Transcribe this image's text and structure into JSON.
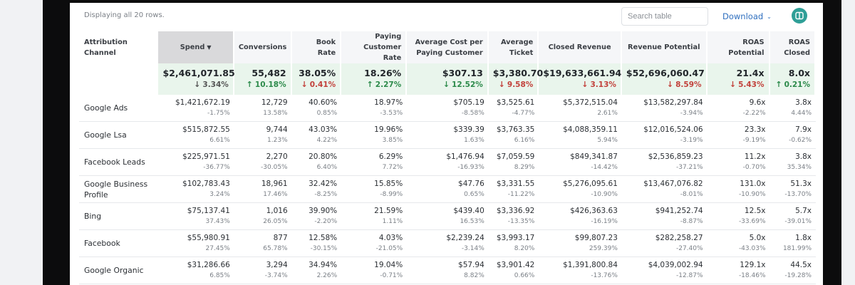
{
  "toolbar": {
    "rows_info": "Displaying all 20 rows.",
    "search_placeholder": "Search table",
    "download_label": "Download",
    "download_chevron": "⌄"
  },
  "colors": {
    "accent": "#2f9f97",
    "link": "#2f6fbf",
    "negative": "#c2413b",
    "positive": "#2c8a4a",
    "total_bg": "#e9f5ec"
  },
  "table": {
    "headers": {
      "channel": "Attribution Channel",
      "spend": "Spend",
      "spend_sort": "▼",
      "conversions": "Conversions",
      "book_rate": "Book Rate",
      "paying_customer_rate": "Paying Customer Rate",
      "avg_cost": "Average Cost per Paying Customer",
      "avg_ticket": "Average Ticket",
      "closed_revenue": "Closed Revenue",
      "revenue_potential": "Revenue Potential",
      "roas_potential": "ROAS Potential",
      "roas_closed": "ROAS Closed"
    },
    "totals": {
      "spend": {
        "value": "$2,461,071.85",
        "change": "3.34%",
        "dir": "down",
        "color": "neutral"
      },
      "conversions": {
        "value": "55,482",
        "change": "10.18%",
        "dir": "up",
        "color": "up"
      },
      "book_rate": {
        "value": "38.05%",
        "change": "0.41%",
        "dir": "down",
        "color": "down"
      },
      "paying_customer_rate": {
        "value": "18.26%",
        "change": "2.27%",
        "dir": "up",
        "color": "up"
      },
      "avg_cost": {
        "value": "$307.13",
        "change": "12.52%",
        "dir": "down",
        "color": "up"
      },
      "avg_ticket": {
        "value": "$3,380.70",
        "change": "9.58%",
        "dir": "down",
        "color": "down"
      },
      "closed_revenue": {
        "value": "$19,633,661.94",
        "change": "3.13%",
        "dir": "down",
        "color": "down"
      },
      "revenue_potential": {
        "value": "$52,696,060.47",
        "change": "8.59%",
        "dir": "down",
        "color": "down"
      },
      "roas_potential": {
        "value": "21.4x",
        "change": "5.43%",
        "dir": "down",
        "color": "down"
      },
      "roas_closed": {
        "value": "8.0x",
        "change": "0.21%",
        "dir": "up",
        "color": "up"
      }
    },
    "rows": [
      {
        "channel": "Google Ads",
        "spend": [
          "$1,421,672.19",
          "-1.75%"
        ],
        "conversions": [
          "12,729",
          "13.58%"
        ],
        "book_rate": [
          "40.60%",
          "0.85%"
        ],
        "paying_customer_rate": [
          "18.97%",
          "-3.53%"
        ],
        "avg_cost": [
          "$705.19",
          "-8.58%"
        ],
        "avg_ticket": [
          "$3,525.61",
          "-4.77%"
        ],
        "closed_revenue": [
          "$5,372,515.04",
          "2.61%"
        ],
        "revenue_potential": [
          "$13,582,297.84",
          "-3.94%"
        ],
        "roas_potential": [
          "9.6x",
          "-2.22%"
        ],
        "roas_closed": [
          "3.8x",
          "4.44%"
        ]
      },
      {
        "channel": "Google Lsa",
        "spend": [
          "$515,872.55",
          "6.61%"
        ],
        "conversions": [
          "9,744",
          "1.23%"
        ],
        "book_rate": [
          "43.03%",
          "4.22%"
        ],
        "paying_customer_rate": [
          "19.96%",
          "3.85%"
        ],
        "avg_cost": [
          "$339.39",
          "1.63%"
        ],
        "avg_ticket": [
          "$3,763.35",
          "6.16%"
        ],
        "closed_revenue": [
          "$4,088,359.11",
          "5.94%"
        ],
        "revenue_potential": [
          "$12,016,524.06",
          "-3.19%"
        ],
        "roas_potential": [
          "23.3x",
          "-9.19%"
        ],
        "roas_closed": [
          "7.9x",
          "-0.62%"
        ]
      },
      {
        "channel": "Facebook Leads",
        "spend": [
          "$225,971.51",
          "-36.77%"
        ],
        "conversions": [
          "2,270",
          "-30.05%"
        ],
        "book_rate": [
          "20.80%",
          "6.40%"
        ],
        "paying_customer_rate": [
          "6.29%",
          "7.72%"
        ],
        "avg_cost": [
          "$1,476.94",
          "-16.93%"
        ],
        "avg_ticket": [
          "$7,059.59",
          "8.29%"
        ],
        "closed_revenue": [
          "$849,341.87",
          "-14.42%"
        ],
        "revenue_potential": [
          "$2,536,859.23",
          "-37.21%"
        ],
        "roas_potential": [
          "11.2x",
          "-0.70%"
        ],
        "roas_closed": [
          "3.8x",
          "35.34%"
        ]
      },
      {
        "channel": "Google Business Profile",
        "spend": [
          "$102,783.43",
          "3.24%"
        ],
        "conversions": [
          "18,961",
          "17.46%"
        ],
        "book_rate": [
          "32.42%",
          "-8.25%"
        ],
        "paying_customer_rate": [
          "15.85%",
          "-8.99%"
        ],
        "avg_cost": [
          "$47.76",
          "0.65%"
        ],
        "avg_ticket": [
          "$3,331.55",
          "-11.22%"
        ],
        "closed_revenue": [
          "$5,276,095.61",
          "-10.90%"
        ],
        "revenue_potential": [
          "$13,467,076.82",
          "-8.01%"
        ],
        "roas_potential": [
          "131.0x",
          "-10.90%"
        ],
        "roas_closed": [
          "51.3x",
          "-13.70%"
        ]
      },
      {
        "channel": "Bing",
        "spend": [
          "$75,137.41",
          "37.43%"
        ],
        "conversions": [
          "1,016",
          "26.05%"
        ],
        "book_rate": [
          "39.90%",
          "-2.20%"
        ],
        "paying_customer_rate": [
          "21.59%",
          "1.11%"
        ],
        "avg_cost": [
          "$439.40",
          "16.53%"
        ],
        "avg_ticket": [
          "$3,336.92",
          "-13.35%"
        ],
        "closed_revenue": [
          "$426,363.63",
          "-16.19%"
        ],
        "revenue_potential": [
          "$941,252.74",
          "-8.87%"
        ],
        "roas_potential": [
          "12.5x",
          "-33.69%"
        ],
        "roas_closed": [
          "5.7x",
          "-39.01%"
        ]
      },
      {
        "channel": "Facebook",
        "spend": [
          "$55,980.91",
          "27.45%"
        ],
        "conversions": [
          "877",
          "65.78%"
        ],
        "book_rate": [
          "12.58%",
          "-30.15%"
        ],
        "paying_customer_rate": [
          "4.03%",
          "-21.05%"
        ],
        "avg_cost": [
          "$2,239.24",
          "-3.14%"
        ],
        "avg_ticket": [
          "$3,993.17",
          "8.20%"
        ],
        "closed_revenue": [
          "$99,807.23",
          "259.39%"
        ],
        "revenue_potential": [
          "$282,258.27",
          "-27.40%"
        ],
        "roas_potential": [
          "5.0x",
          "-43.03%"
        ],
        "roas_closed": [
          "1.8x",
          "181.99%"
        ]
      },
      {
        "channel": "Google Organic",
        "spend": [
          "$31,286.66",
          "6.85%"
        ],
        "conversions": [
          "3,294",
          "-3.74%"
        ],
        "book_rate": [
          "34.94%",
          "2.26%"
        ],
        "paying_customer_rate": [
          "19.04%",
          "-0.71%"
        ],
        "avg_cost": [
          "$57.94",
          "8.82%"
        ],
        "avg_ticket": [
          "$3,901.42",
          "0.66%"
        ],
        "closed_revenue": [
          "$1,391,800.84",
          "-13.76%"
        ],
        "revenue_potential": [
          "$4,039,002.94",
          "-12.87%"
        ],
        "roas_potential": [
          "129.1x",
          "-18.46%"
        ],
        "roas_closed": [
          "44.5x",
          "-19.28%"
        ]
      }
    ]
  }
}
